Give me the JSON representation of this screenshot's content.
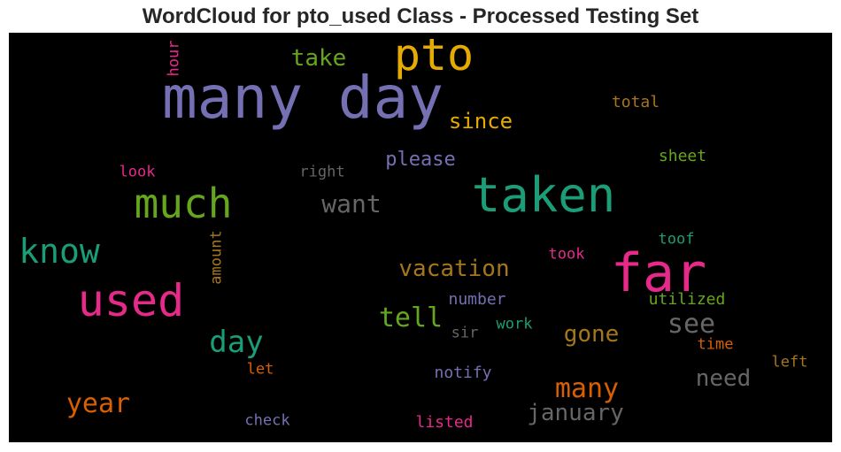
{
  "title": "WordCloud for pto_used Class - Processed Testing Set",
  "palette": {
    "background": "#000000",
    "teal": "#1b9e77",
    "orange": "#d95f02",
    "purple": "#7570b3",
    "magenta": "#e7298a",
    "green": "#66a61e",
    "gold": "#e6ab02",
    "brown": "#a6761d",
    "gray": "#666666"
  },
  "words": [
    {
      "text": "many day",
      "color": "#7570b3"
    },
    {
      "text": "pto",
      "color": "#e6ab02"
    },
    {
      "text": "taken",
      "color": "#1b9e77"
    },
    {
      "text": "far",
      "color": "#e7298a"
    },
    {
      "text": "used",
      "color": "#e7298a"
    },
    {
      "text": "much",
      "color": "#66a61e"
    },
    {
      "text": "know",
      "color": "#1b9e77"
    },
    {
      "text": "take",
      "color": "#66a61e"
    },
    {
      "text": "since",
      "color": "#e6ab02"
    },
    {
      "text": "please",
      "color": "#7570b3"
    },
    {
      "text": "want",
      "color": "#666666"
    },
    {
      "text": "right",
      "color": "#666666"
    },
    {
      "text": "look",
      "color": "#e7298a"
    },
    {
      "text": "hour",
      "color": "#e7298a"
    },
    {
      "text": "total",
      "color": "#a6761d"
    },
    {
      "text": "sheet",
      "color": "#66a61e"
    },
    {
      "text": "toof",
      "color": "#1b9e77"
    },
    {
      "text": "took",
      "color": "#e7298a"
    },
    {
      "text": "amount",
      "color": "#a6761d"
    },
    {
      "text": "vacation",
      "color": "#a6761d"
    },
    {
      "text": "tell",
      "color": "#66a61e"
    },
    {
      "text": "number",
      "color": "#7570b3"
    },
    {
      "text": "utilized",
      "color": "#66a61e"
    },
    {
      "text": "day",
      "color": "#1b9e77"
    },
    {
      "text": "see",
      "color": "#666666"
    },
    {
      "text": "sir",
      "color": "#666666"
    },
    {
      "text": "work",
      "color": "#1b9e77"
    },
    {
      "text": "gone",
      "color": "#a6761d"
    },
    {
      "text": "time",
      "color": "#d95f02"
    },
    {
      "text": "let",
      "color": "#d95f02"
    },
    {
      "text": "left",
      "color": "#a6761d"
    },
    {
      "text": "need",
      "color": "#666666"
    },
    {
      "text": "notify",
      "color": "#7570b3"
    },
    {
      "text": "many",
      "color": "#d95f02"
    },
    {
      "text": "year",
      "color": "#d95f02"
    },
    {
      "text": "january",
      "color": "#666666"
    },
    {
      "text": "check",
      "color": "#7570b3"
    },
    {
      "text": "listed",
      "color": "#e7298a"
    }
  ]
}
